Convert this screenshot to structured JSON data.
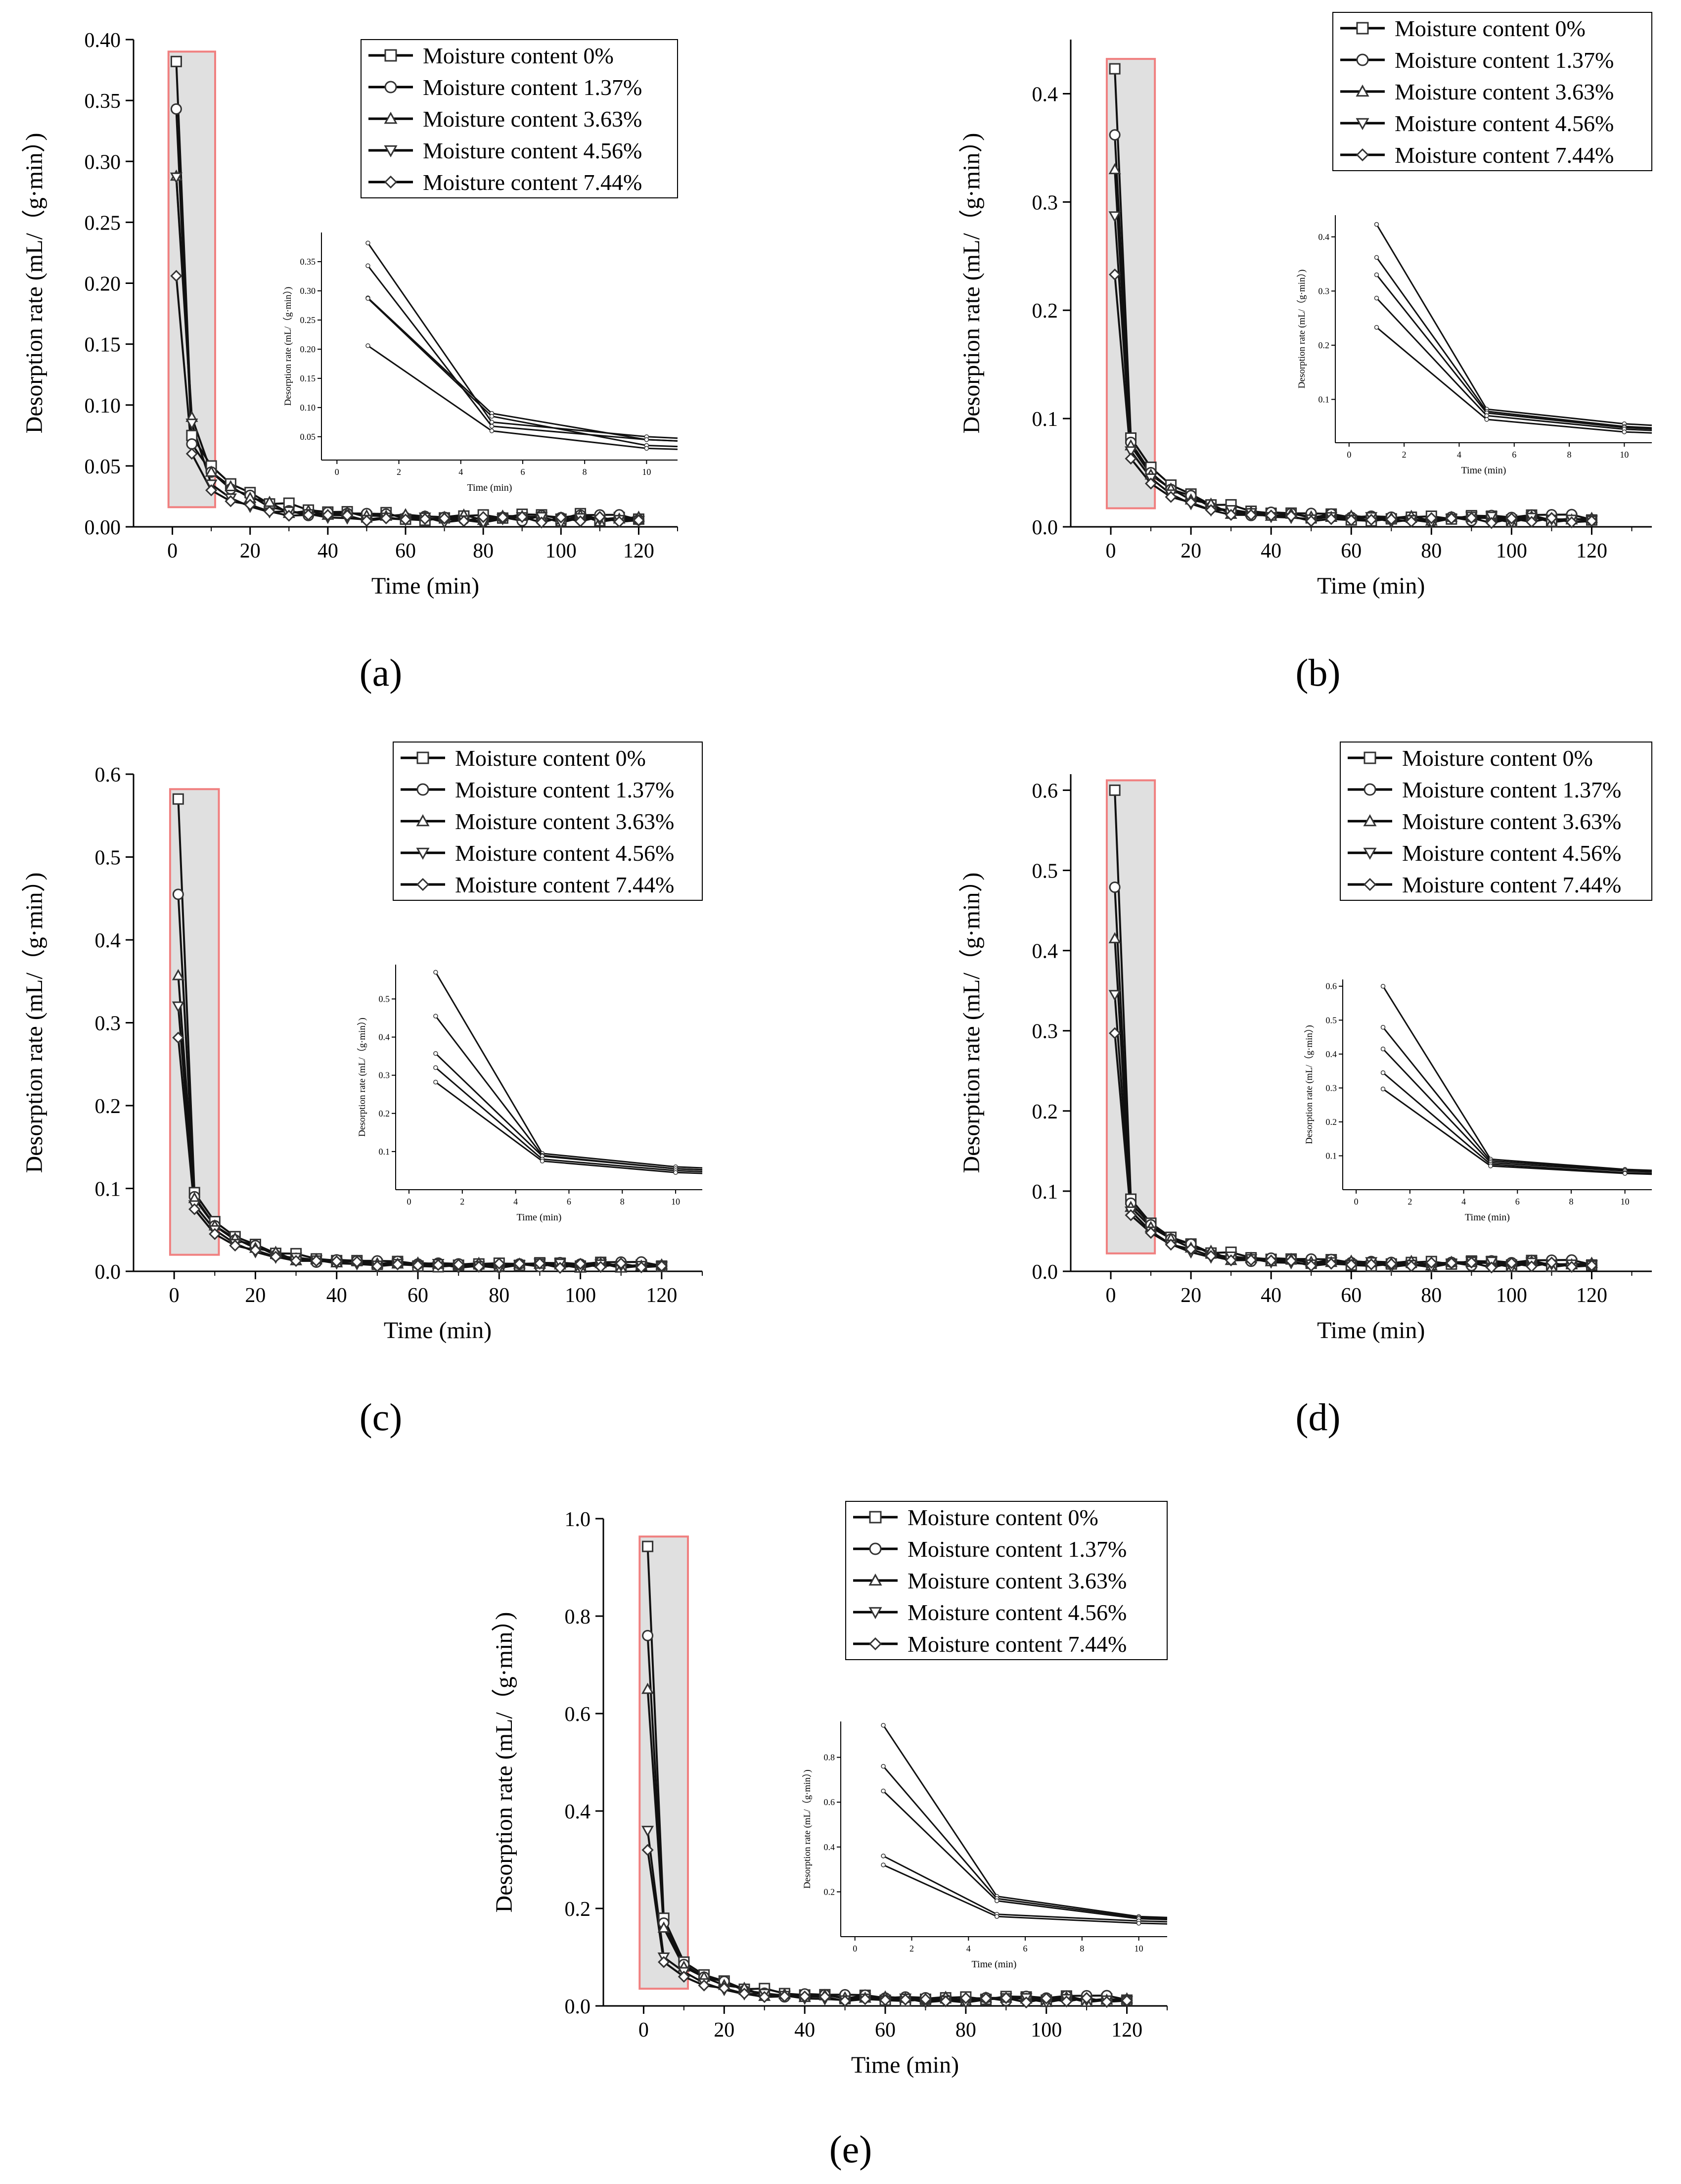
{
  "figure": {
    "panels": [
      "a",
      "b",
      "c",
      "d",
      "e"
    ],
    "panel_labels": [
      "(a)",
      "(b)",
      "(c)",
      "(d)",
      "(e)"
    ]
  },
  "chart_data": [
    {
      "id": "a",
      "type": "line",
      "xlabel": "Time (min)",
      "ylabel": "Desorption rate (mL/（g·min）)",
      "xlim": [
        -10,
        130
      ],
      "ylim": [
        0,
        0.4
      ],
      "xticks": [
        0,
        20,
        40,
        60,
        80,
        100,
        120
      ],
      "yticks": [
        0.0,
        0.05,
        0.1,
        0.15,
        0.2,
        0.25,
        0.3,
        0.35,
        0.4
      ],
      "ytick_labels": [
        "0.00",
        "0.05",
        "0.10",
        "0.15",
        "0.20",
        "0.25",
        "0.30",
        "0.35",
        "0.40"
      ],
      "legend": [
        "Moisture content 0%",
        "Moisture content 1.37%",
        "Moisture content 3.63%",
        "Moisture content 4.56%",
        "Moisture content 7.44%"
      ],
      "highlight_x": [
        -1,
        11
      ],
      "series_initial": [
        0.382,
        0.343,
        0.288,
        0.287,
        0.206
      ],
      "series_at5": [
        0.075,
        0.068,
        0.09,
        0.085,
        0.06
      ],
      "series_at10": [
        0.05,
        0.045,
        0.045,
        0.035,
        0.03
      ],
      "series_tail": [
        0.008,
        0.007,
        0.007,
        0.006,
        0.006
      ],
      "inset": {
        "xlabel": "Time (min)",
        "ylabel": "Desorption rate (mL/（g·min）)",
        "xticks": [
          0,
          2,
          4,
          6,
          8,
          10
        ],
        "yticks": [
          0.05,
          0.1,
          0.15,
          0.2,
          0.25,
          0.3,
          0.35
        ],
        "ytick_labels": [
          "0.05",
          "0.10",
          "0.15",
          "0.20",
          "0.25",
          "0.30",
          "0.35"
        ],
        "xlim": [
          -0.5,
          11
        ],
        "ylim": [
          0.01,
          0.4
        ]
      }
    },
    {
      "id": "b",
      "type": "line",
      "xlabel": "Time (min)",
      "ylabel": "Desorption rate (mL/（g·min）)",
      "xlim": [
        -10,
        135
      ],
      "ylim": [
        0,
        0.45
      ],
      "xticks": [
        0,
        20,
        40,
        60,
        80,
        100,
        120
      ],
      "yticks": [
        0.0,
        0.1,
        0.2,
        0.3,
        0.4
      ],
      "ytick_labels": [
        "0.0",
        "0.1",
        "0.2",
        "0.3",
        "0.4"
      ],
      "legend": [
        "Moisture content 0%",
        "Moisture content 1.37%",
        "Moisture content 3.63%",
        "Moisture content 4.56%",
        "Moisture content 7.44%"
      ],
      "highlight_x": [
        -1,
        11
      ],
      "series_initial": [
        0.423,
        0.362,
        0.33,
        0.287,
        0.233
      ],
      "series_at5": [
        0.082,
        0.078,
        0.075,
        0.07,
        0.063
      ],
      "series_at10": [
        0.055,
        0.05,
        0.048,
        0.045,
        0.04
      ],
      "series_tail": [
        0.008,
        0.008,
        0.007,
        0.007,
        0.006
      ],
      "inset": {
        "xlabel": "Time (min)",
        "ylabel": "Desorption rate (mL/（g·min）)",
        "xticks": [
          0,
          2,
          4,
          6,
          8,
          10
        ],
        "yticks": [
          0.1,
          0.2,
          0.3,
          0.4
        ],
        "ytick_labels": [
          "0.1",
          "0.2",
          "0.3",
          "0.4"
        ],
        "xlim": [
          -0.5,
          11
        ],
        "ylim": [
          0.02,
          0.44
        ]
      }
    },
    {
      "id": "c",
      "type": "line",
      "xlabel": "Time (min)",
      "ylabel": "Desorption rate (mL/（g·min）)",
      "xlim": [
        -10,
        130
      ],
      "ylim": [
        0,
        0.6
      ],
      "xticks": [
        0,
        20,
        40,
        60,
        80,
        100,
        120
      ],
      "yticks": [
        0.0,
        0.1,
        0.2,
        0.3,
        0.4,
        0.5,
        0.6
      ],
      "ytick_labels": [
        "0.0",
        "0.1",
        "0.2",
        "0.3",
        "0.4",
        "0.5",
        "0.6"
      ],
      "legend": [
        "Moisture content 0%",
        "Moisture content 1.37%",
        "Moisture content 3.63%",
        "Moisture content 4.56%",
        "Moisture content 7.44%"
      ],
      "highlight_x": [
        -1,
        11
      ],
      "series_initial": [
        0.57,
        0.455,
        0.357,
        0.32,
        0.282
      ],
      "series_at5": [
        0.095,
        0.09,
        0.088,
        0.08,
        0.075
      ],
      "series_at10": [
        0.06,
        0.055,
        0.055,
        0.05,
        0.045
      ],
      "series_tail": [
        0.008,
        0.008,
        0.007,
        0.007,
        0.007
      ],
      "inset": {
        "xlabel": "Time (min)",
        "ylabel": "Desorption rate (mL/（g·min）)",
        "xticks": [
          0,
          2,
          4,
          6,
          8,
          10
        ],
        "yticks": [
          0.1,
          0.2,
          0.3,
          0.4,
          0.5
        ],
        "ytick_labels": [
          "0.1",
          "0.2",
          "0.3",
          "0.4",
          "0.5"
        ],
        "xlim": [
          -0.5,
          11
        ],
        "ylim": [
          0.0,
          0.59
        ]
      }
    },
    {
      "id": "d",
      "type": "line",
      "xlabel": "Time (min)",
      "ylabel": "Desorption rate (mL/（g·min）)",
      "xlim": [
        -10,
        135
      ],
      "ylim": [
        0,
        0.62
      ],
      "xticks": [
        0,
        20,
        40,
        60,
        80,
        100,
        120
      ],
      "yticks": [
        0.0,
        0.1,
        0.2,
        0.3,
        0.4,
        0.5,
        0.6
      ],
      "ytick_labels": [
        "0.0",
        "0.1",
        "0.2",
        "0.3",
        "0.4",
        "0.5",
        "0.6"
      ],
      "legend": [
        "Moisture content 0%",
        "Moisture content 1.37%",
        "Moisture content 3.63%",
        "Moisture content 4.56%",
        "Moisture content 7.44%"
      ],
      "highlight_x": [
        -1,
        11
      ],
      "series_initial": [
        0.6,
        0.479,
        0.415,
        0.345,
        0.297
      ],
      "series_at5": [
        0.09,
        0.085,
        0.08,
        0.075,
        0.07
      ],
      "series_at10": [
        0.06,
        0.058,
        0.055,
        0.05,
        0.048
      ],
      "series_tail": [
        0.01,
        0.01,
        0.009,
        0.009,
        0.008
      ],
      "inset": {
        "xlabel": "Time (min)",
        "ylabel": "Desorption rate (mL/（g·min）)",
        "xticks": [
          0,
          2,
          4,
          6,
          8,
          10
        ],
        "yticks": [
          0.1,
          0.2,
          0.3,
          0.4,
          0.5,
          0.6
        ],
        "ytick_labels": [
          "0.1",
          "0.2",
          "0.3",
          "0.4",
          "0.5",
          "0.6"
        ],
        "xlim": [
          -0.5,
          11
        ],
        "ylim": [
          0.0,
          0.62
        ]
      }
    },
    {
      "id": "e",
      "type": "line",
      "xlabel": "Time (min)",
      "ylabel": "Desorption rate (mL/（g·min）)",
      "xlim": [
        -10,
        130
      ],
      "ylim": [
        0,
        1.0
      ],
      "xticks": [
        0,
        20,
        40,
        60,
        80,
        100,
        120
      ],
      "yticks": [
        0.0,
        0.2,
        0.4,
        0.6,
        0.8,
        1.0
      ],
      "ytick_labels": [
        "0.0",
        "0.2",
        "0.4",
        "0.6",
        "0.8",
        "1.0"
      ],
      "legend": [
        "Moisture content 0%",
        "Moisture content 1.37%",
        "Moisture content 3.63%",
        "Moisture content 4.56%",
        "Moisture content 7.44%"
      ],
      "highlight_x": [
        -1,
        11
      ],
      "series_initial": [
        0.943,
        0.76,
        0.65,
        0.36,
        0.32
      ],
      "series_at5": [
        0.18,
        0.17,
        0.16,
        0.1,
        0.09
      ],
      "series_at10": [
        0.09,
        0.085,
        0.08,
        0.07,
        0.06
      ],
      "series_tail": [
        0.015,
        0.015,
        0.013,
        0.012,
        0.012
      ],
      "inset": {
        "xlabel": "Time (min)",
        "ylabel": "Desorption rate (mL/（g·min）)",
        "xticks": [
          0,
          2,
          4,
          6,
          8,
          10
        ],
        "yticks": [
          0.2,
          0.4,
          0.6,
          0.8
        ],
        "ytick_labels": [
          "0.2",
          "0.4",
          "0.6",
          "0.8"
        ],
        "xlim": [
          -0.5,
          11
        ],
        "ylim": [
          0.0,
          0.96
        ]
      }
    }
  ]
}
